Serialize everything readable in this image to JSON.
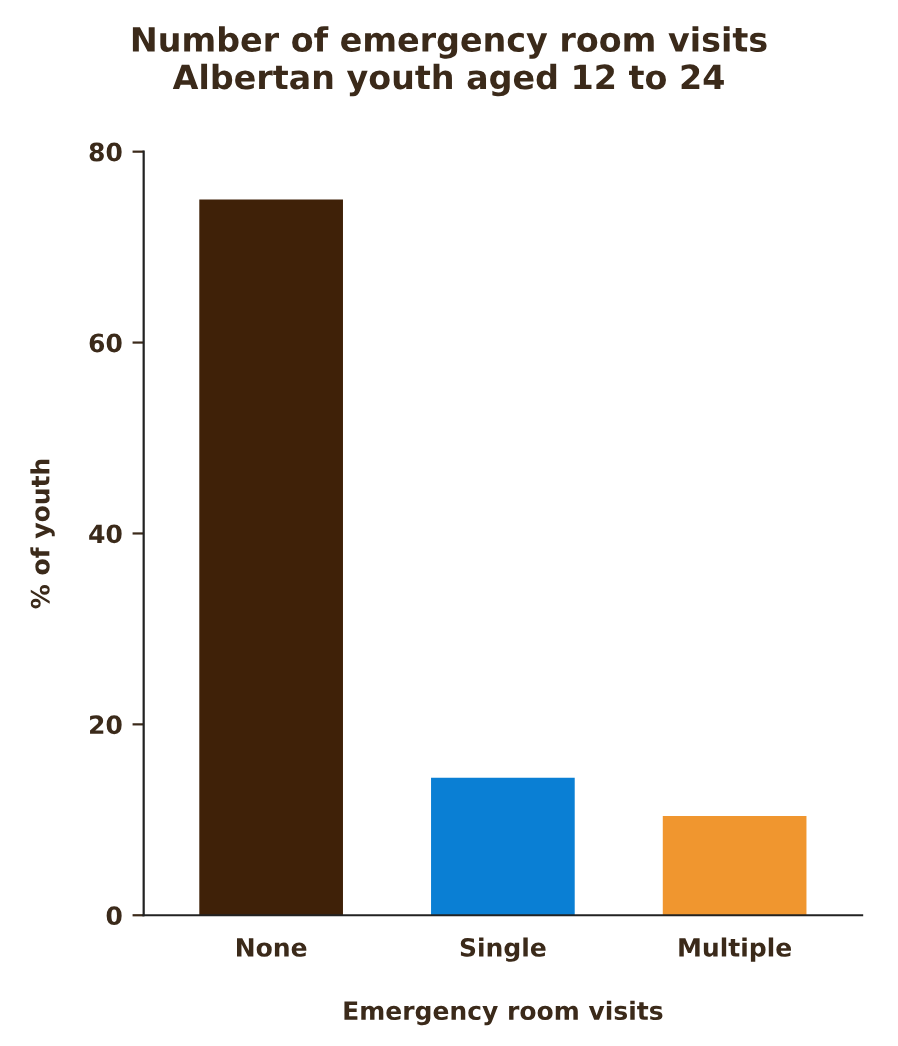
{
  "chart_data": {
    "type": "bar",
    "title": "Number of emergency room visits\nAlbertan youth aged 12 to 24",
    "xlabel": "Emergency room visits",
    "ylabel": "% of youth",
    "categories": [
      "None",
      "Single",
      "Multiple"
    ],
    "values": [
      75,
      14.4,
      10.4
    ],
    "colors": [
      "#3f2108",
      "#0a7fd4",
      "#f0962f"
    ],
    "ylim": [
      0,
      80
    ],
    "yticks": [
      0,
      20,
      40,
      60,
      80
    ],
    "grid": false,
    "legend": false
  }
}
